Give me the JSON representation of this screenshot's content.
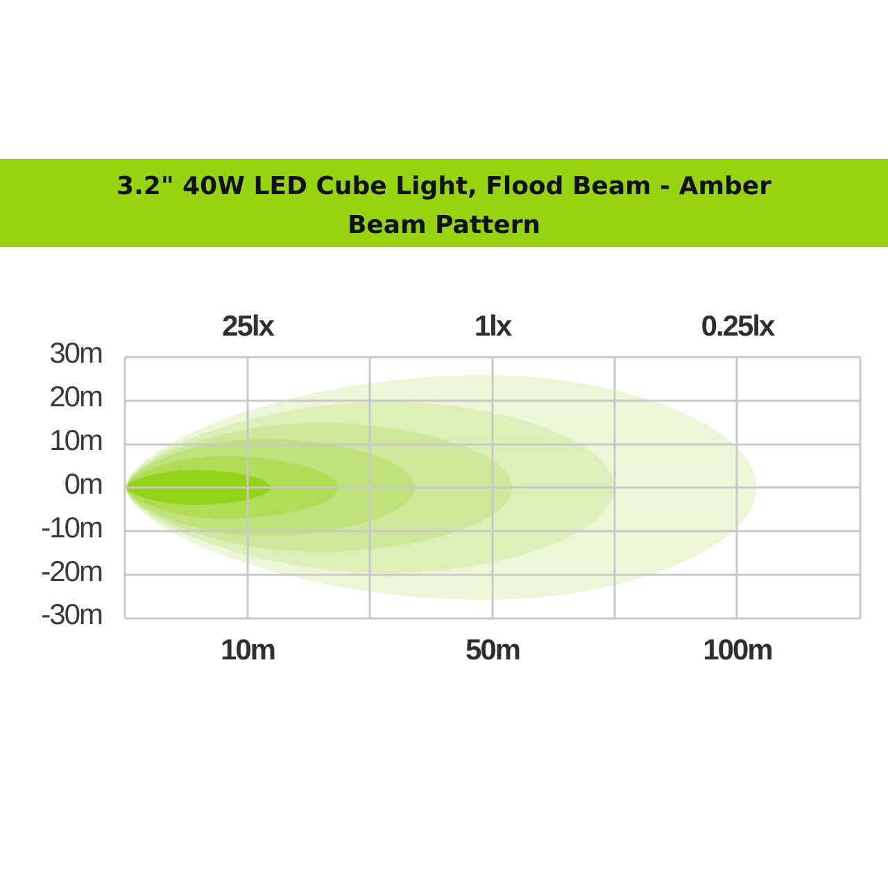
{
  "header": {
    "title_lines": [
      "3.2\" 40W LED Cube Light, Flood Beam - Amber",
      "Beam Pattern"
    ]
  },
  "diagram": {
    "top_labels": [
      "25lx",
      "1lx",
      "0.25lx"
    ],
    "y_labels": [
      "30m",
      "20m",
      "10m",
      "0m",
      "-10m",
      "-20m",
      "-30m"
    ],
    "x_labels": [
      "10m",
      "50m",
      "100m"
    ]
  }
}
